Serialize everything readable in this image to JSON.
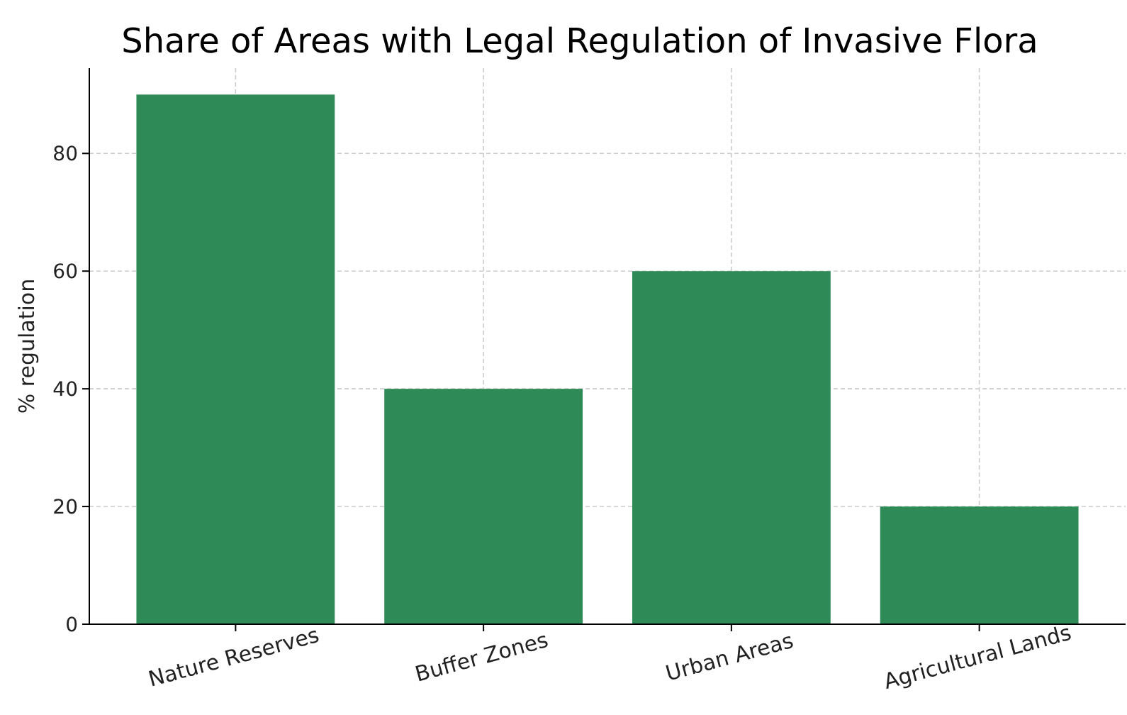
{
  "chart_data": {
    "type": "bar",
    "title": "Share of Areas with Legal Regulation of Invasive Flora",
    "ylabel": "% regulation",
    "categories": [
      "Nature Reserves",
      "Buffer Zones",
      "Urban Areas",
      "Agricultural Lands"
    ],
    "values": [
      90,
      40,
      60,
      20
    ],
    "color": "#2e8b57",
    "ylim": [
      0,
      94.5
    ],
    "yticks": [
      0,
      20,
      40,
      60,
      80
    ],
    "grid": true
  }
}
